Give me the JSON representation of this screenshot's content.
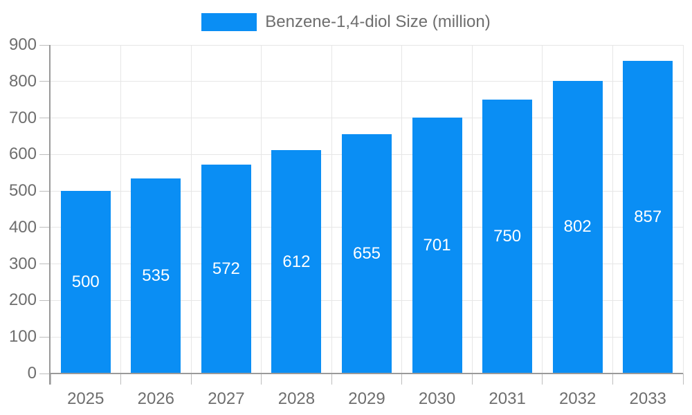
{
  "legend": {
    "label": "Benzene-1,4-diol Size (million)"
  },
  "chart_data": {
    "type": "bar",
    "title": "",
    "xlabel": "",
    "ylabel": "",
    "categories": [
      "2025",
      "2026",
      "2027",
      "2028",
      "2029",
      "2030",
      "2031",
      "2032",
      "2033"
    ],
    "series": [
      {
        "name": "Benzene-1,4-diol Size (million)",
        "values": [
          500,
          535,
          572,
          612,
          655,
          701,
          750,
          802,
          857
        ]
      }
    ],
    "ylim": [
      0,
      900
    ],
    "ytick_step": 100,
    "ytick_labels": [
      "0",
      "100",
      "200",
      "300",
      "400",
      "500",
      "600",
      "700",
      "800",
      "900"
    ],
    "grid": "on",
    "legend_position": "top-center",
    "bar_labels_position": "inside-center",
    "colors": {
      "bar": "#0a8ef4",
      "bar_label": "#ffffff",
      "axis": "#999999",
      "tick": "#bdbdbd",
      "grid": "#e6e6e6",
      "text": "#6e6e6e"
    }
  }
}
